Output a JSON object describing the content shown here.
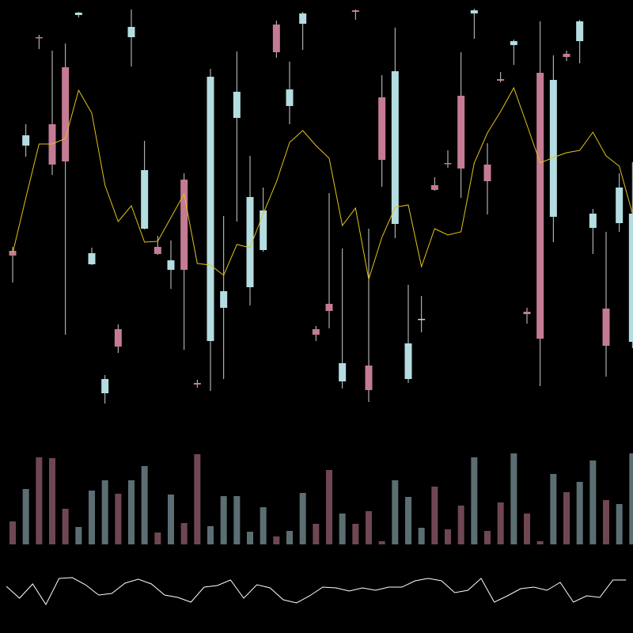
{
  "chart_data": [
    {
      "type": "candlestick",
      "up_color": "#b4dde1",
      "down_color": "#c47b93",
      "wick_color": "#cfcfcf",
      "ylim": [
        0,
        520
      ],
      "open": [
        203,
        336,
        473,
        363,
        435,
        501,
        186,
        23,
        104,
        473,
        231,
        208,
        179,
        293,
        36,
        89,
        131,
        371,
        157,
        204,
        489,
        386,
        490,
        104,
        136,
        38,
        507,
        58,
        397,
        237,
        41,
        116,
        286,
        314,
        399,
        503,
        312,
        420,
        463,
        126,
        428,
        246,
        452,
        468,
        232,
        130,
        238,
        88
      ],
      "high": [
        208,
        363,
        476,
        456,
        465,
        505,
        207,
        46,
        110,
        508,
        342,
        222,
        216,
        301,
        40,
        433,
        247,
        455,
        323,
        283,
        494,
        442,
        505,
        108,
        276,
        206,
        508,
        231,
        425,
        485,
        160,
        146,
        296,
        330,
        454,
        509,
        339,
        429,
        470,
        131,
        493,
        450,
        456,
        495,
        256,
        227,
        301,
        315
      ],
      "low": [
        163,
        322,
        458,
        299,
        97,
        498,
        185,
        10,
        74,
        436,
        230,
        198,
        155,
        78,
        30,
        26,
        41,
        240,
        134,
        202,
        447,
        363,
        457,
        89,
        105,
        29,
        495,
        12,
        284,
        219,
        36,
        100,
        279,
        308,
        270,
        471,
        249,
        416,
        438,
        111,
        32,
        214,
        443,
        440,
        199,
        44,
        227,
        80
      ],
      "close": [
        197,
        349,
        472,
        312,
        316,
        504,
        200,
        41,
        82,
        486,
        305,
        199,
        191,
        179,
        34,
        423,
        152,
        404,
        271,
        254,
        454,
        407,
        503,
        97,
        127,
        61,
        505,
        27,
        318,
        430,
        86,
        117,
        280,
        313,
        307,
        507,
        291,
        418,
        468,
        123,
        92,
        419,
        448,
        493,
        250,
        83,
        283,
        250
      ],
      "overlay": {
        "color": "#e3c21a",
        "values": [
          200,
          270,
          338,
          338,
          345,
          406,
          377,
          286,
          240,
          260,
          214,
          215,
          245,
          275,
          187,
          185,
          172,
          211,
          207,
          250,
          290,
          340,
          355,
          336,
          320,
          235,
          257,
          167,
          220,
          258,
          261,
          183,
          231,
          223,
          227,
          314,
          352,
          379,
          409,
          362,
          314,
          321,
          327,
          330,
          353,
          323,
          310,
          250
        ]
      }
    },
    {
      "type": "bar",
      "up_color": "#5b6f73",
      "down_color": "#6f4752",
      "ylim": [
        0,
        120
      ],
      "values": [
        29,
        70,
        110,
        109,
        45,
        22,
        68,
        81,
        64,
        81,
        99,
        15,
        63,
        27,
        114,
        23,
        61,
        61,
        16,
        47,
        10,
        17,
        65,
        26,
        94,
        39,
        26,
        42,
        4,
        81,
        60,
        21,
        73,
        19,
        49,
        110,
        17,
        53,
        115,
        39,
        4,
        89,
        66,
        79,
        106,
        56,
        51,
        115
      ]
    },
    {
      "type": "line",
      "color": "#ffffff",
      "ylim": [
        0,
        60
      ],
      "values": [
        29,
        14,
        32,
        6,
        39,
        40,
        31,
        18,
        20,
        33,
        38,
        32,
        18,
        15,
        9,
        28,
        30,
        37,
        14,
        31,
        27,
        12,
        8,
        17,
        28,
        27,
        23,
        27,
        24,
        28,
        28,
        36,
        39,
        36,
        21,
        24,
        39,
        9,
        17,
        26,
        28,
        24,
        34,
        9,
        17,
        15,
        37,
        37
      ]
    }
  ]
}
